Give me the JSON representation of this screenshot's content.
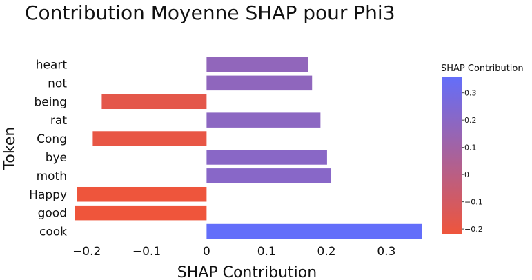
{
  "chart_data": {
    "type": "bar",
    "orientation": "horizontal",
    "title": "Contribution Moyenne SHAP pour Phi3",
    "xlabel": "SHAP Contribution",
    "ylabel": "Token",
    "xlim": [
      -0.225,
      0.36
    ],
    "xticks": [
      -0.2,
      -0.1,
      0,
      0.1,
      0.2,
      0.3
    ],
    "xtick_labels": [
      "−0.2",
      "−0.1",
      "0",
      "0.1",
      "0.2",
      "0.3"
    ],
    "categories": [
      "heart",
      "not",
      "being",
      "rat",
      "Cong",
      "bye",
      "moth",
      "Happy",
      "good",
      "cook"
    ],
    "values": [
      0.17,
      0.176,
      -0.175,
      0.19,
      -0.19,
      0.201,
      0.208,
      -0.216,
      -0.22,
      0.359
    ],
    "colorbar": {
      "title": "SHAP Contribution",
      "range": [
        -0.22,
        0.36
      ],
      "ticks": [
        -0.2,
        -0.1,
        0,
        0.1,
        0.2,
        0.3
      ],
      "tick_labels": [
        "−0.2",
        "−0.1",
        "0",
        "0.1",
        "0.2",
        "0.3"
      ],
      "color_low": "#ef553b",
      "color_high": "#636efa"
    },
    "grid": false
  }
}
